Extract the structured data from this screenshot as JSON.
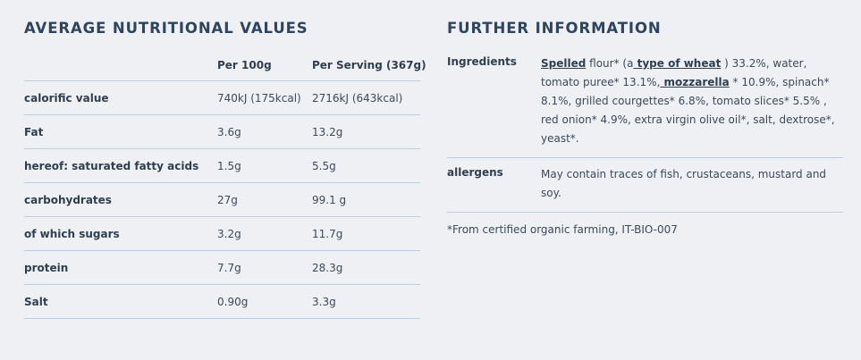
{
  "left": {
    "title": "AVERAGE NUTRITIONAL VALUES",
    "header": {
      "col1": "",
      "col2": "Per 100g",
      "col3": "Per Serving (367g)"
    },
    "rows": [
      {
        "label": "calorific value",
        "per100": "740kJ (175kcal)",
        "perServing": "2716kJ (643kcal)"
      },
      {
        "label": "Fat",
        "per100": "3.6g",
        "perServing": "13.2g"
      },
      {
        "label": "hereof: saturated fatty acids",
        "per100": "1.5g",
        "perServing": "5.5g"
      },
      {
        "label": "carbohydrates",
        "per100": "27g",
        "perServing": "99.1 g"
      },
      {
        "label": "of which sugars",
        "per100": "3.2g",
        "perServing": "11.7g"
      },
      {
        "label": "protein",
        "per100": "7.7g",
        "perServing": "28.3g"
      },
      {
        "label": "Salt",
        "per100": "0.90g",
        "perServing": "3.3g"
      }
    ]
  },
  "right": {
    "title": "FURTHER INFORMATION",
    "ingredients": {
      "label": "Ingredients",
      "t1": "Spelled",
      "t2": " flour* (a",
      "t3": " type of wheat",
      "t4": " ) 33.2%, water, tomato puree* 13.1%,",
      "t5": " mozzarella",
      "t6": " * 10.9%, spinach* 8.1%, grilled courgettes* 6.8%, tomato slices* 5.5% , red onion* 4.9%, extra virgin olive oil*, salt, dextrose*, yeast*."
    },
    "allergens": {
      "label": "allergens",
      "value": "May contain traces of fish, crustaceans, mustard and soy."
    },
    "footnote": "*From certified organic farming, IT-BIO-007"
  }
}
